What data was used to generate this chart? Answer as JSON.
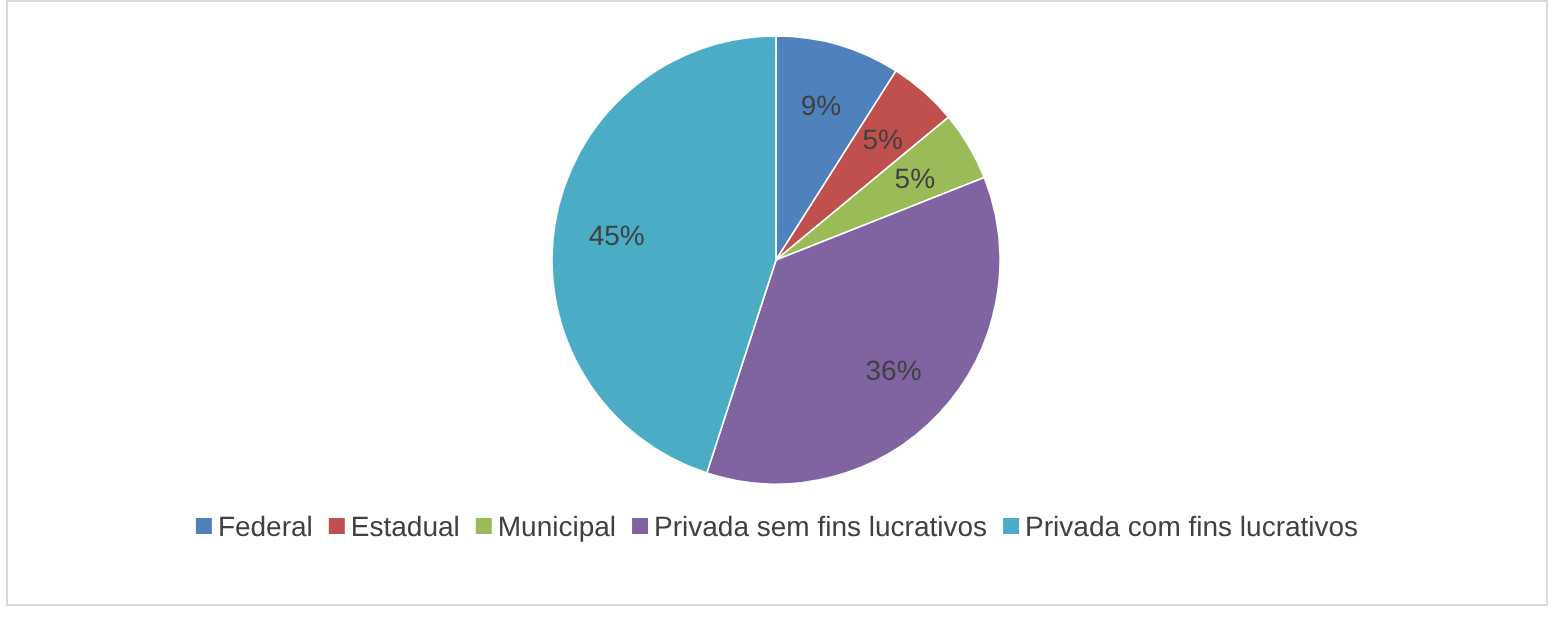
{
  "chart_data": {
    "type": "pie",
    "categories": [
      "Federal",
      "Estadual",
      "Municipal",
      "Privada sem fins lucrativos",
      "Privada com fins lucrativos"
    ],
    "values": [
      9,
      5,
      5,
      36,
      45
    ],
    "colors": [
      "#4f81bd",
      "#c0504d",
      "#9bbb59",
      "#8064a2",
      "#4bacc6"
    ],
    "value_labels": [
      "9%",
      "5%",
      "5%",
      "36%",
      "45%"
    ],
    "legend": "bottom"
  }
}
